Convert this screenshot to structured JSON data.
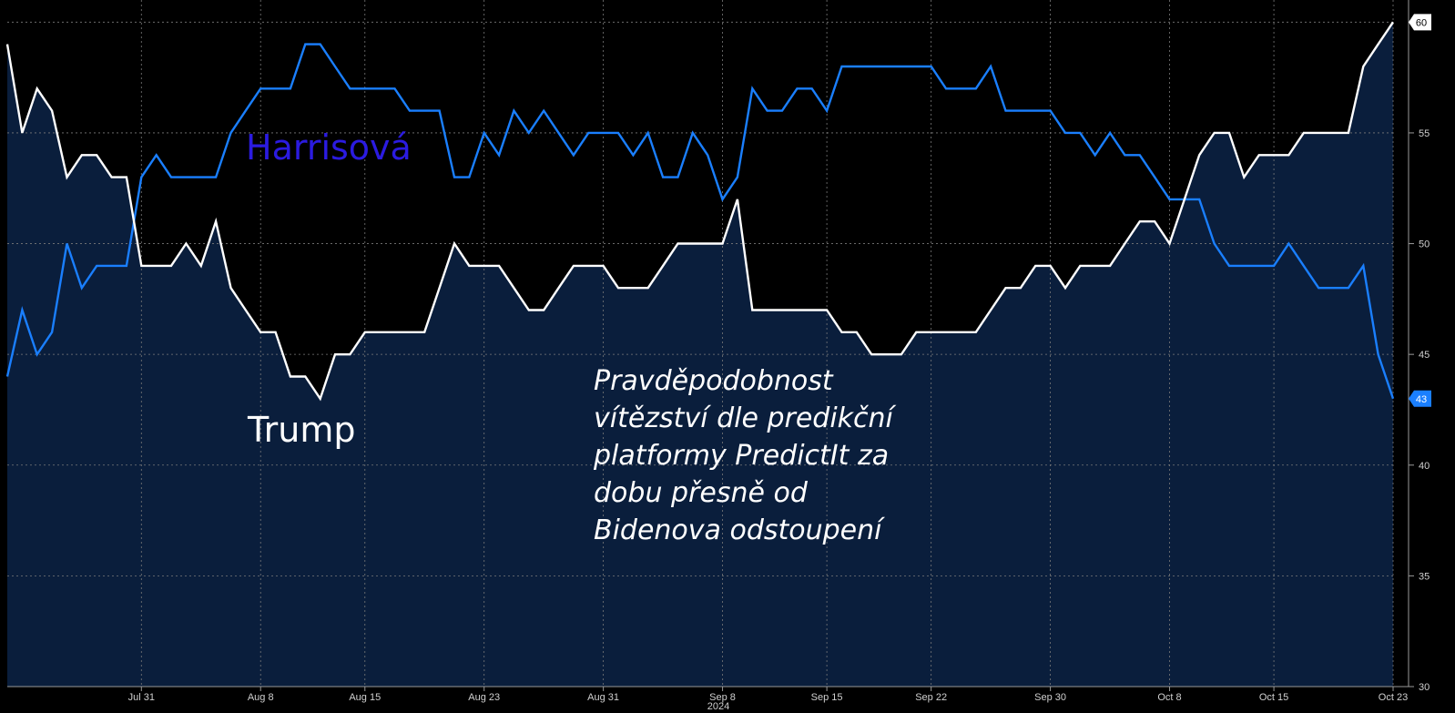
{
  "chart_data": {
    "type": "line",
    "annotation_lines": [
      "Pravděpodobnost",
      "vítězství dle predikční",
      "platformy PredictIt za",
      "dobu přesně od",
      "Bidenova odstoupení"
    ],
    "x_year_label": "2024",
    "x_tick_labels": [
      "Jul 31",
      "Aug 8",
      "Aug 15",
      "Aug 23",
      "Aug 31",
      "Sep 8",
      "Sep 15",
      "Sep 22",
      "Sep 30",
      "Oct 8",
      "Oct 15",
      "Oct 23"
    ],
    "y_tick_labels": [
      "30",
      "35",
      "40",
      "45",
      "50",
      "55",
      "60"
    ],
    "ylim": [
      30,
      61
    ],
    "x_range": [
      "2024-07-22",
      "2024-10-23"
    ],
    "grid": true,
    "series": [
      {
        "name": "Harrisová",
        "color": "#1a7fff",
        "last_value_label": "43",
        "points": [
          [
            "2024-07-22",
            44
          ],
          [
            "2024-07-23",
            47
          ],
          [
            "2024-07-24",
            45
          ],
          [
            "2024-07-25",
            46
          ],
          [
            "2024-07-26",
            50
          ],
          [
            "2024-07-27",
            48
          ],
          [
            "2024-07-28",
            49
          ],
          [
            "2024-07-29",
            49
          ],
          [
            "2024-07-30",
            49
          ],
          [
            "2024-07-31",
            53
          ],
          [
            "2024-08-01",
            54
          ],
          [
            "2024-08-02",
            53
          ],
          [
            "2024-08-03",
            53
          ],
          [
            "2024-08-04",
            53
          ],
          [
            "2024-08-05",
            53
          ],
          [
            "2024-08-06",
            55
          ],
          [
            "2024-08-07",
            56
          ],
          [
            "2024-08-08",
            57
          ],
          [
            "2024-08-09",
            57
          ],
          [
            "2024-08-10",
            57
          ],
          [
            "2024-08-11",
            59
          ],
          [
            "2024-08-12",
            59
          ],
          [
            "2024-08-13",
            58
          ],
          [
            "2024-08-14",
            57
          ],
          [
            "2024-08-15",
            57
          ],
          [
            "2024-08-16",
            57
          ],
          [
            "2024-08-17",
            57
          ],
          [
            "2024-08-18",
            56
          ],
          [
            "2024-08-19",
            56
          ],
          [
            "2024-08-20",
            56
          ],
          [
            "2024-08-21",
            53
          ],
          [
            "2024-08-22",
            53
          ],
          [
            "2024-08-23",
            55
          ],
          [
            "2024-08-24",
            54
          ],
          [
            "2024-08-25",
            56
          ],
          [
            "2024-08-26",
            55
          ],
          [
            "2024-08-27",
            56
          ],
          [
            "2024-08-28",
            55
          ],
          [
            "2024-08-29",
            54
          ],
          [
            "2024-08-30",
            55
          ],
          [
            "2024-08-31",
            55
          ],
          [
            "2024-09-01",
            55
          ],
          [
            "2024-09-02",
            54
          ],
          [
            "2024-09-03",
            55
          ],
          [
            "2024-09-04",
            53
          ],
          [
            "2024-09-05",
            53
          ],
          [
            "2024-09-06",
            55
          ],
          [
            "2024-09-07",
            54
          ],
          [
            "2024-09-08",
            52
          ],
          [
            "2024-09-09",
            53
          ],
          [
            "2024-09-10",
            57
          ],
          [
            "2024-09-11",
            56
          ],
          [
            "2024-09-12",
            56
          ],
          [
            "2024-09-13",
            57
          ],
          [
            "2024-09-14",
            57
          ],
          [
            "2024-09-15",
            56
          ],
          [
            "2024-09-16",
            58
          ],
          [
            "2024-09-17",
            58
          ],
          [
            "2024-09-18",
            58
          ],
          [
            "2024-09-19",
            58
          ],
          [
            "2024-09-20",
            58
          ],
          [
            "2024-09-21",
            58
          ],
          [
            "2024-09-22",
            58
          ],
          [
            "2024-09-23",
            57
          ],
          [
            "2024-09-24",
            57
          ],
          [
            "2024-09-25",
            57
          ],
          [
            "2024-09-26",
            58
          ],
          [
            "2024-09-27",
            56
          ],
          [
            "2024-09-28",
            56
          ],
          [
            "2024-09-29",
            56
          ],
          [
            "2024-09-30",
            56
          ],
          [
            "2024-10-01",
            55
          ],
          [
            "2024-10-02",
            55
          ],
          [
            "2024-10-03",
            54
          ],
          [
            "2024-10-04",
            55
          ],
          [
            "2024-10-05",
            54
          ],
          [
            "2024-10-06",
            54
          ],
          [
            "2024-10-07",
            53
          ],
          [
            "2024-10-08",
            52
          ],
          [
            "2024-10-09",
            52
          ],
          [
            "2024-10-10",
            52
          ],
          [
            "2024-10-11",
            50
          ],
          [
            "2024-10-12",
            49
          ],
          [
            "2024-10-13",
            49
          ],
          [
            "2024-10-14",
            49
          ],
          [
            "2024-10-15",
            49
          ],
          [
            "2024-10-16",
            50
          ],
          [
            "2024-10-17",
            49
          ],
          [
            "2024-10-18",
            48
          ],
          [
            "2024-10-19",
            48
          ],
          [
            "2024-10-20",
            48
          ],
          [
            "2024-10-21",
            49
          ],
          [
            "2024-10-22",
            45
          ],
          [
            "2024-10-23",
            43
          ]
        ]
      },
      {
        "name": "Trump",
        "color": "#ffffff",
        "last_value_label": "60",
        "points": [
          [
            "2024-07-22",
            59
          ],
          [
            "2024-07-23",
            55
          ],
          [
            "2024-07-24",
            57
          ],
          [
            "2024-07-25",
            56
          ],
          [
            "2024-07-26",
            53
          ],
          [
            "2024-07-27",
            54
          ],
          [
            "2024-07-28",
            54
          ],
          [
            "2024-07-29",
            53
          ],
          [
            "2024-07-30",
            53
          ],
          [
            "2024-07-31",
            49
          ],
          [
            "2024-08-01",
            49
          ],
          [
            "2024-08-02",
            49
          ],
          [
            "2024-08-03",
            50
          ],
          [
            "2024-08-04",
            49
          ],
          [
            "2024-08-05",
            51
          ],
          [
            "2024-08-06",
            48
          ],
          [
            "2024-08-07",
            47
          ],
          [
            "2024-08-08",
            46
          ],
          [
            "2024-08-09",
            46
          ],
          [
            "2024-08-10",
            44
          ],
          [
            "2024-08-11",
            44
          ],
          [
            "2024-08-12",
            43
          ],
          [
            "2024-08-13",
            45
          ],
          [
            "2024-08-14",
            45
          ],
          [
            "2024-08-15",
            46
          ],
          [
            "2024-08-16",
            46
          ],
          [
            "2024-08-17",
            46
          ],
          [
            "2024-08-18",
            46
          ],
          [
            "2024-08-19",
            46
          ],
          [
            "2024-08-20",
            48
          ],
          [
            "2024-08-21",
            50
          ],
          [
            "2024-08-22",
            49
          ],
          [
            "2024-08-23",
            49
          ],
          [
            "2024-08-24",
            49
          ],
          [
            "2024-08-25",
            48
          ],
          [
            "2024-08-26",
            47
          ],
          [
            "2024-08-27",
            47
          ],
          [
            "2024-08-28",
            48
          ],
          [
            "2024-08-29",
            49
          ],
          [
            "2024-08-30",
            49
          ],
          [
            "2024-08-31",
            49
          ],
          [
            "2024-09-01",
            48
          ],
          [
            "2024-09-02",
            48
          ],
          [
            "2024-09-03",
            48
          ],
          [
            "2024-09-04",
            49
          ],
          [
            "2024-09-05",
            50
          ],
          [
            "2024-09-06",
            50
          ],
          [
            "2024-09-07",
            50
          ],
          [
            "2024-09-08",
            50
          ],
          [
            "2024-09-09",
            52
          ],
          [
            "2024-09-10",
            47
          ],
          [
            "2024-09-11",
            47
          ],
          [
            "2024-09-12",
            47
          ],
          [
            "2024-09-13",
            47
          ],
          [
            "2024-09-14",
            47
          ],
          [
            "2024-09-15",
            47
          ],
          [
            "2024-09-16",
            46
          ],
          [
            "2024-09-17",
            46
          ],
          [
            "2024-09-18",
            45
          ],
          [
            "2024-09-19",
            45
          ],
          [
            "2024-09-20",
            45
          ],
          [
            "2024-09-21",
            46
          ],
          [
            "2024-09-22",
            46
          ],
          [
            "2024-09-23",
            46
          ],
          [
            "2024-09-24",
            46
          ],
          [
            "2024-09-25",
            46
          ],
          [
            "2024-09-26",
            47
          ],
          [
            "2024-09-27",
            48
          ],
          [
            "2024-09-28",
            48
          ],
          [
            "2024-09-29",
            49
          ],
          [
            "2024-09-30",
            49
          ],
          [
            "2024-10-01",
            48
          ],
          [
            "2024-10-02",
            49
          ],
          [
            "2024-10-03",
            49
          ],
          [
            "2024-10-04",
            49
          ],
          [
            "2024-10-05",
            50
          ],
          [
            "2024-10-06",
            51
          ],
          [
            "2024-10-07",
            51
          ],
          [
            "2024-10-08",
            50
          ],
          [
            "2024-10-09",
            52
          ],
          [
            "2024-10-10",
            54
          ],
          [
            "2024-10-11",
            55
          ],
          [
            "2024-10-12",
            55
          ],
          [
            "2024-10-13",
            53
          ],
          [
            "2024-10-14",
            54
          ],
          [
            "2024-10-15",
            54
          ],
          [
            "2024-10-16",
            54
          ],
          [
            "2024-10-17",
            55
          ],
          [
            "2024-10-18",
            55
          ],
          [
            "2024-10-19",
            55
          ],
          [
            "2024-10-20",
            55
          ],
          [
            "2024-10-21",
            58
          ],
          [
            "2024-10-22",
            59
          ],
          [
            "2024-10-23",
            60
          ]
        ]
      }
    ]
  }
}
